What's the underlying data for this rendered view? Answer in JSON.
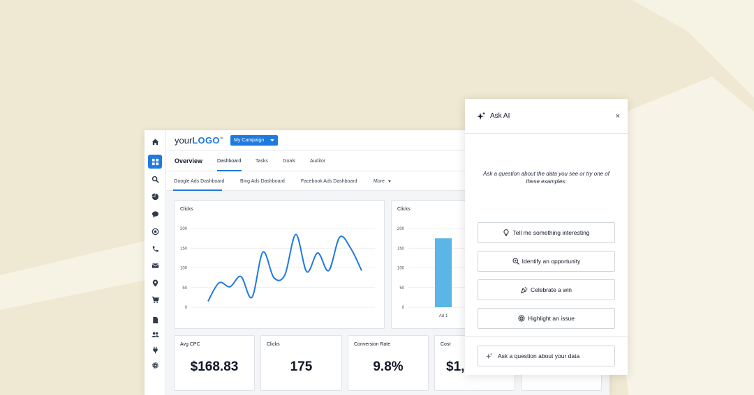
{
  "colors": {
    "accent": "#1f7ae0",
    "background": "#efe8d2",
    "bar": "#5bb5e6"
  },
  "rail": {
    "icons": [
      "home-icon",
      "dashboard-icon",
      "search-icon",
      "pie-chart-icon",
      "chat-icon",
      "target-icon",
      "phone-icon",
      "mail-icon",
      "location-pin-icon",
      "cart-icon",
      "document-icon",
      "users-icon",
      "plug-icon",
      "settings-icon"
    ]
  },
  "header": {
    "logo_text_prefix": "your",
    "logo_text_bold": "LOGO",
    "logo_tm": "™",
    "campaign_label": "My Campaign"
  },
  "nav": {
    "title": "Overview",
    "tabs": [
      {
        "label": "Dashboard",
        "active": true
      },
      {
        "label": "Tasks"
      },
      {
        "label": "Goals"
      },
      {
        "label": "Auditor"
      }
    ]
  },
  "subnav": {
    "tabs": [
      {
        "label": "Google Ads Dashboard",
        "active": true
      },
      {
        "label": "Bing Ads Dashboard"
      },
      {
        "label": "Facebook Ads Dashboard"
      },
      {
        "label": "More"
      }
    ]
  },
  "chart_data": [
    {
      "type": "line",
      "title": "Clicks",
      "ylim": [
        0,
        200
      ],
      "yticks": [
        0,
        50,
        100,
        150,
        200
      ],
      "grid": true,
      "series": [
        {
          "values": [
            15,
            62,
            52,
            78,
            25,
            140,
            75,
            82,
            185,
            90,
            138,
            93,
            178,
            150,
            93
          ]
        }
      ]
    },
    {
      "type": "bar",
      "title": "Clicks",
      "ylim": [
        0,
        200
      ],
      "yticks": [
        0,
        50,
        100,
        150,
        200
      ],
      "categories": [
        "Ad 1"
      ],
      "values": [
        175
      ]
    }
  ],
  "metrics": [
    {
      "title": "Avg CPC",
      "value": "$168.83"
    },
    {
      "title": "Clicks",
      "value": "175"
    },
    {
      "title": "Conversion Rate",
      "value": "9.8%"
    },
    {
      "title": "Cost",
      "value": "$1,"
    }
  ],
  "ai_panel": {
    "title": "Ask AI",
    "close": "×",
    "prompt": "Ask a question about the data you see or try one of these examples:",
    "suggestions": [
      {
        "label": "Tell me something interesting",
        "icon": "lightbulb-icon"
      },
      {
        "label": "Identify an opportunity",
        "icon": "magnify-plus-icon"
      },
      {
        "label": "Celebrate a win",
        "icon": "party-popper-icon"
      },
      {
        "label": "Highlight an issue",
        "icon": "target-alert-icon"
      }
    ],
    "ask_label": "Ask a question about your data"
  }
}
